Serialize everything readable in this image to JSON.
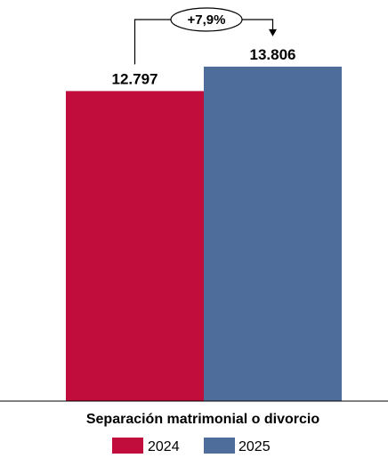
{
  "chart_data": {
    "type": "bar",
    "categories": [
      "Separación matrimonial o divorcio"
    ],
    "series": [
      {
        "name": "2024",
        "values": [
          12797
        ],
        "label": "12.797",
        "color": "#c00d3c"
      },
      {
        "name": "2025",
        "values": [
          13806
        ],
        "label": "13.806",
        "color": "#4f6d9b"
      }
    ],
    "annotation": {
      "text": "+7,9%"
    },
    "ylim": [
      0,
      14500
    ],
    "grid": false,
    "legend_position": "bottom"
  }
}
